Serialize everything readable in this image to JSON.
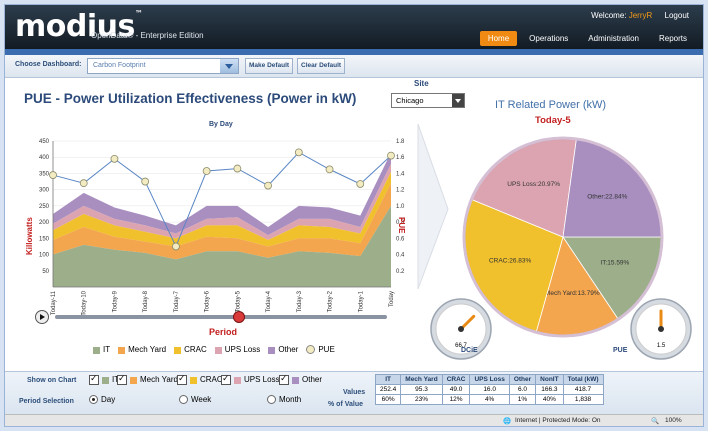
{
  "header": {
    "logo": "modius",
    "trademark": "™",
    "edition": "OpenData® - Enterprise Edition",
    "welcome_prefix": "Welcome:",
    "user": "JerryR",
    "logout": "Logout",
    "nav": [
      "Home",
      "Operations",
      "Administration",
      "Reports"
    ]
  },
  "dashbar": {
    "label": "Choose Dashboard:",
    "selected": "Carbon Footprint",
    "make_default": "Make Default",
    "clear_default": "Clear Default"
  },
  "panel": {
    "title": "PUE - Power Utilization Effectiveness (Power in kW)",
    "site_label": "Site",
    "site_value": "Chicago",
    "subtitle": "By Day",
    "y_label": "Killowatts",
    "y2_label": "PUE",
    "x_label": "Period",
    "it_title": "IT Related Power (kW)",
    "it_subtitle": "Today-5",
    "dcie_label": "DCiE",
    "dcie_value": "66.7",
    "pue_label": "PUE",
    "pue_value": "1.5"
  },
  "legend": [
    {
      "label": "IT",
      "color": "#9cae8a"
    },
    {
      "label": "Mech Yard",
      "color": "#f4a64f"
    },
    {
      "label": "CRAC",
      "color": "#f0c12c"
    },
    {
      "label": "UPS Loss",
      "color": "#dba4b0"
    },
    {
      "label": "Other",
      "color": "#a88fc0"
    },
    {
      "label": "PUE",
      "color": "#f3ecc2"
    }
  ],
  "chart_data": [
    {
      "type": "area",
      "title": "By Day",
      "xlabel": "Period",
      "ylabel": "Killowatts",
      "y2label": "PUE",
      "categories": [
        "Today-11",
        "Today-10",
        "Today-9",
        "Today-8",
        "Today-7",
        "Today-6",
        "Today-5",
        "Today-4",
        "Today-3",
        "Today-2",
        "Today-1",
        "Today"
      ],
      "ylim": [
        0,
        450
      ],
      "y2lim": [
        0,
        1.8
      ],
      "yticks": [
        50,
        100,
        150,
        200,
        250,
        300,
        350,
        400,
        450
      ],
      "y2ticks": [
        "0.2",
        "0.4",
        "0.6",
        "0.8",
        "1.0",
        "1.2",
        "1.4",
        "1.6",
        "1.8"
      ],
      "series": [
        {
          "name": "IT",
          "values": [
            100,
            130,
            115,
            105,
            85,
            110,
            110,
            90,
            110,
            105,
            95,
            250
          ]
        },
        {
          "name": "Mech Yard",
          "values": [
            45,
            55,
            40,
            35,
            40,
            45,
            40,
            35,
            40,
            45,
            40,
            70
          ]
        },
        {
          "name": "CRAC",
          "values": [
            30,
            40,
            35,
            30,
            25,
            35,
            40,
            20,
            40,
            35,
            30,
            35
          ]
        },
        {
          "name": "UPS Loss",
          "values": [
            20,
            25,
            20,
            20,
            15,
            20,
            25,
            15,
            20,
            25,
            20,
            25
          ]
        },
        {
          "name": "Other",
          "values": [
            30,
            40,
            35,
            30,
            25,
            40,
            35,
            25,
            40,
            35,
            35,
            35
          ]
        },
        {
          "name": "PUE",
          "axis": "y2",
          "values": [
            1.38,
            1.28,
            1.58,
            1.3,
            0.5,
            1.43,
            1.46,
            1.25,
            1.66,
            1.45,
            1.27,
            1.62
          ]
        }
      ]
    },
    {
      "type": "pie",
      "title": "IT Related Power (kW)",
      "subtitle": "Today-5",
      "labels": [
        "IT",
        "Mech Yard",
        "CRAC",
        "UPS Loss",
        "Other"
      ],
      "label_text": [
        "IT:15.59%",
        "Mech Yard:13.79%",
        "CRAC:26.83%",
        "UPS Loss:20.97%",
        "Other:22.84%"
      ],
      "values": [
        15.59,
        13.79,
        26.83,
        20.97,
        22.84
      ]
    }
  ],
  "gauges": {
    "dcie": 66.7,
    "pue": 1.5
  },
  "bottom": {
    "show_label": "Show on Chart",
    "checks": [
      {
        "label": "IT",
        "color": "#9cae8a"
      },
      {
        "label": "Mech Yard",
        "color": "#f4a64f"
      },
      {
        "label": "CRAC",
        "color": "#f0c12c"
      },
      {
        "label": "UPS Loss",
        "color": "#dba4b0"
      },
      {
        "label": "Other",
        "color": "#a88fc0"
      }
    ],
    "period_label": "Period Selection",
    "periods": [
      "Day",
      "Week",
      "Month"
    ],
    "values_label": "Values",
    "pct_label": "% of Value",
    "table": {
      "headers": [
        "IT",
        "Mech Yard",
        "CRAC",
        "UPS Loss",
        "Other",
        "NonIT",
        "Total (kW)"
      ],
      "values": [
        "252.4",
        "95.3",
        "49.0",
        "16.0",
        "6.0",
        "166.3",
        "418.7"
      ],
      "percents": [
        "60%",
        "23%",
        "12%",
        "4%",
        "1%",
        "40%",
        "1,838"
      ]
    }
  },
  "status": {
    "zone": "Internet | Protected Mode: On",
    "zoom": "100%"
  }
}
